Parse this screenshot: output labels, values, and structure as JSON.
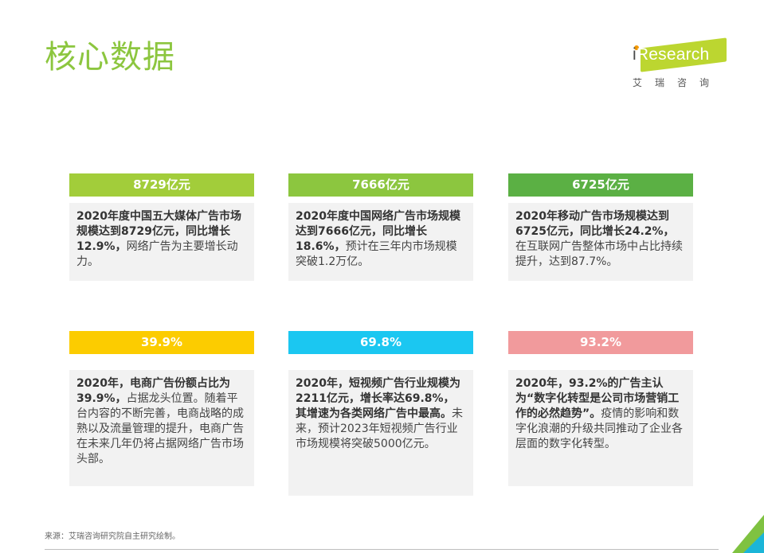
{
  "title": "核心数据",
  "logo": {
    "brand_i": "i",
    "brand_rest": "Research",
    "sub": "艾瑞咨询"
  },
  "cards": [
    {
      "header": "8729亿元",
      "color": "#a2cd3a",
      "strong": "2020年度中国五大媒体广告市场规模达到8729亿元，同比增长12.9%，",
      "normal": "网络广告为主要增长动力。"
    },
    {
      "header": "7666亿元",
      "color": "#8cc63f",
      "strong": "2020年度中国网络广告市场规模达到7666亿元，同比增长18.6%，",
      "normal": "预计在三年内市场规模突破1.2万亿。"
    },
    {
      "header": "6725亿元",
      "color": "#5bb044",
      "strong": "2020年移动广告市场规模达到6725亿元，同比增长24.2%，",
      "normal": "在互联网广告整体市场中占比持续提升，达到87.7%。"
    },
    {
      "header": "39.9%",
      "color": "#fccc00",
      "strong": "2020年，电商广告份额占比为39.9%，",
      "normal": "占据龙头位置。随着平台内容的不断完善，电商战略的成熟以及流量管理的提升，电商广告在未来几年仍将占据网络广告市场头部。"
    },
    {
      "header": "69.8%",
      "color": "#1bc7f1",
      "strong": "2020年，短视频广告行业规模为2211亿元，增长率达69.8%，其增速为各类网络广告中最高。",
      "normal": "未来，预计2023年短视频广告行业市场规模将突破5000亿元。"
    },
    {
      "header": "93.2%",
      "color": "#f19a9c",
      "strong": "2020年，93.2%的广告主认为“数字化转型是公司市场营销工作的必然趋势”。",
      "normal": "疫情的影响和数字化浪潮的升级共同推动了企业各层面的数字化转型。"
    }
  ],
  "footer": {
    "source": "来源：艾瑞咨询研究院自主研究绘制。"
  }
}
